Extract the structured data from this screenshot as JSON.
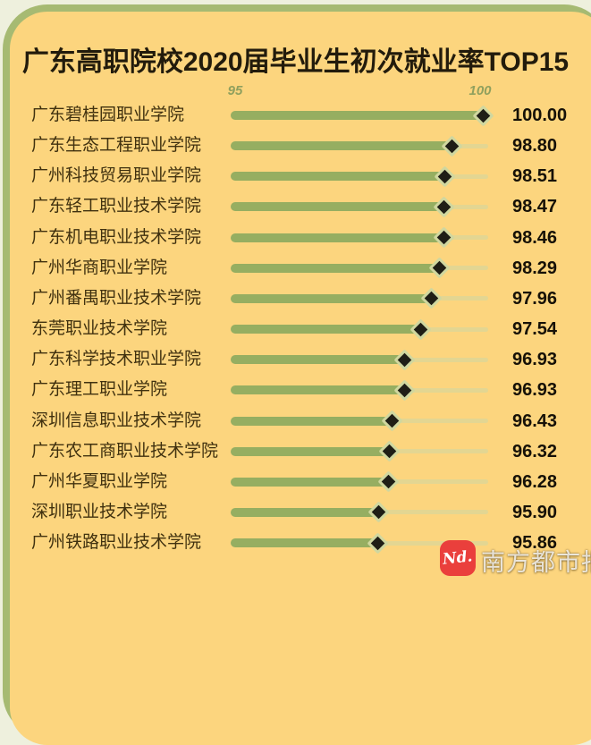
{
  "page": {
    "background_color": "#eef0dd",
    "frame_color": "#a6ba72",
    "card_color": "#fcd57e"
  },
  "chart_data": {
    "type": "bar",
    "orientation": "horizontal",
    "title": "广东高职院校2020届毕业生初次就业率TOP15",
    "categories": [
      "广东碧桂园职业学院",
      "广东生态工程职业学院",
      "广州科技贸易职业学院",
      "广东轻工职业技术学院",
      "广东机电职业技术学院",
      "广州华商职业学院",
      "广州番禺职业技术学院",
      "东莞职业技术学院",
      "广东科学技术职业学院",
      "广东理工职业学院",
      "深圳信息职业技术学院",
      "广东农工商职业技术学院",
      "广州华夏职业学院",
      "深圳职业技术学院",
      "广州铁路职业技术学院"
    ],
    "values": [
      100.0,
      98.8,
      98.51,
      98.47,
      98.46,
      98.29,
      97.96,
      97.54,
      96.93,
      96.93,
      96.43,
      96.32,
      96.28,
      95.9,
      95.86
    ],
    "value_labels": [
      "100.00",
      "98.80",
      "98.51",
      "98.47",
      "98.46",
      "98.29",
      "97.96",
      "97.54",
      "96.93",
      "96.93",
      "96.43",
      "96.32",
      "96.28",
      "95.90",
      "95.86"
    ],
    "xlabel": "",
    "ylabel": "",
    "axis_ticks": [
      "95",
      "100"
    ],
    "xlim": [
      95,
      100
    ],
    "grid": false,
    "legend": false,
    "bar_color": "#96ae61",
    "marker": "diamond",
    "marker_fill": "#1f1e16",
    "marker_border": "#d0d79f"
  },
  "footer": {
    "logo_text": "Nd.",
    "publisher": "南方都市报"
  }
}
